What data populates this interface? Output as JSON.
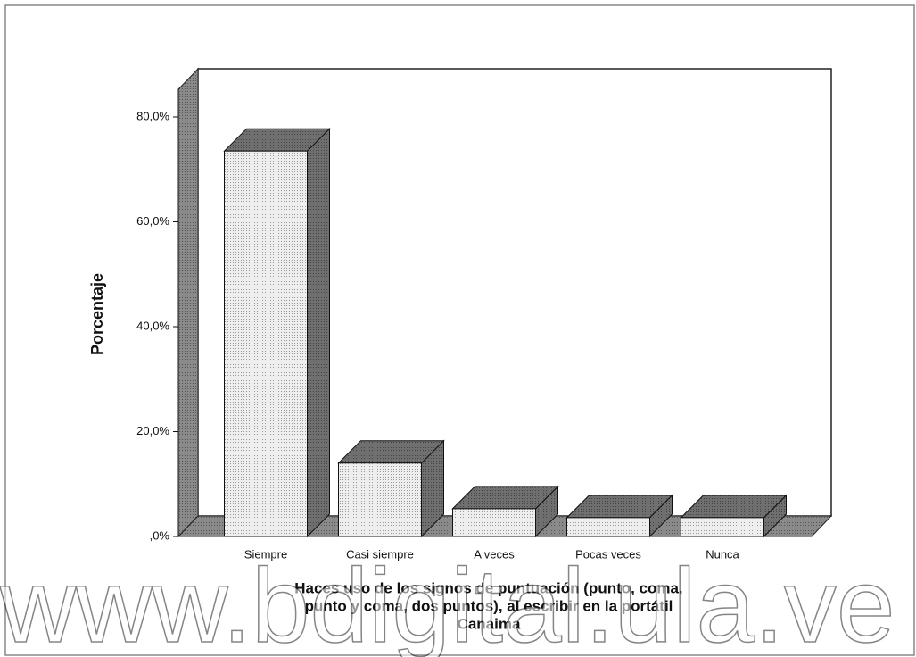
{
  "chart_data": {
    "type": "bar3d",
    "ylabel": "Porcentaje",
    "xlabel": [
      "Haces uso de los signos de puntuación (punto, coma,",
      "punto y coma, dos puntos), al escribir en la portátil",
      "Canaima"
    ],
    "categories": [
      "Siempre",
      "Casi siempre",
      "A veces",
      "Pocas veces",
      "Nunca"
    ],
    "values": [
      73.5,
      14,
      5.3,
      3.6,
      3.6
    ],
    "color": "#e4e4e4",
    "ylim": [
      0,
      80
    ],
    "yticks": [
      {
        "value": 0,
        "label": ",0%"
      },
      {
        "value": 20,
        "label": "20,0%"
      },
      {
        "value": 40,
        "label": "40,0%"
      },
      {
        "value": 60,
        "label": "60,0%"
      },
      {
        "value": 80,
        "label": "80,0%"
      }
    ],
    "watermark": "www.bdigital.ula.ve"
  }
}
